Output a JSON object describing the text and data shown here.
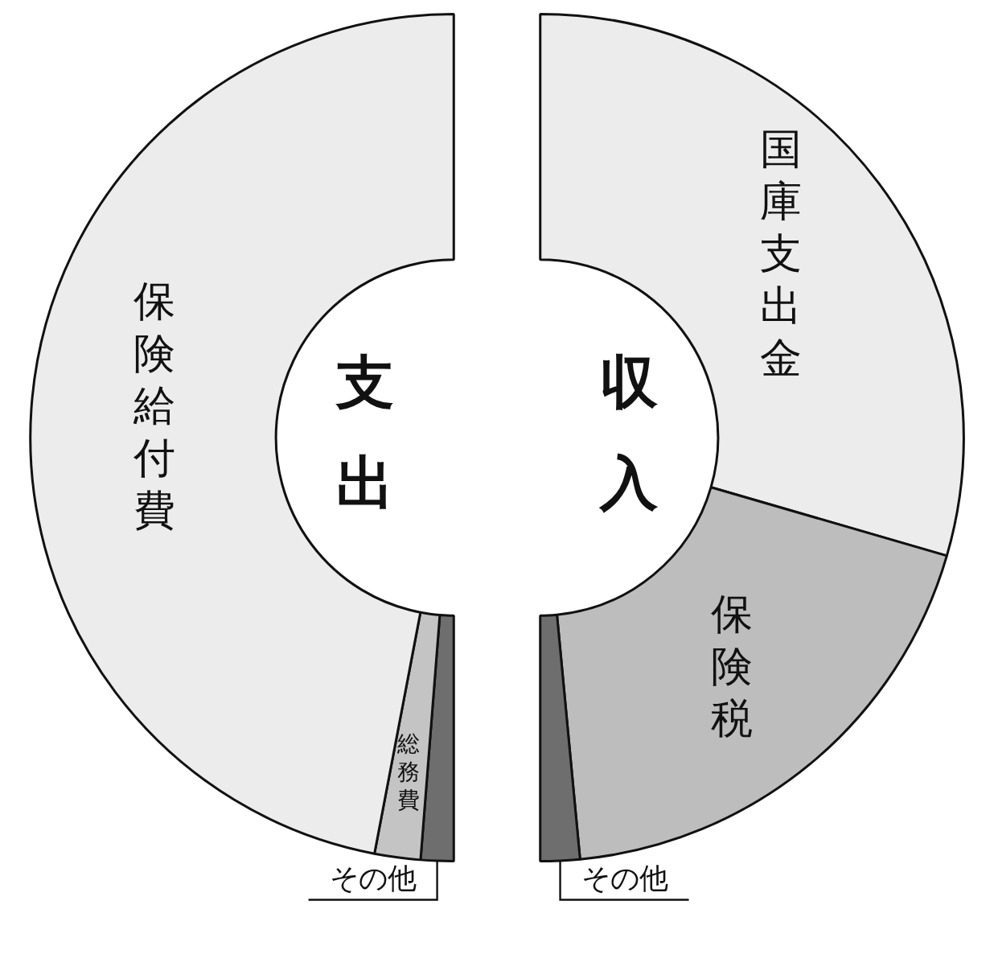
{
  "chart_data": [
    {
      "type": "donut",
      "title": "支出",
      "categories": [
        "その他",
        "総務費",
        "保険給付費"
      ],
      "values": [
        2.5,
        3.5,
        94
      ],
      "colors": [
        "#6e6e6e",
        "#c4c4c4",
        "#ececec"
      ],
      "legend": false
    },
    {
      "type": "donut",
      "title": "収入",
      "categories": [
        "国庫支出金",
        "保険税",
        "その他"
      ],
      "values": [
        59,
        38,
        3
      ],
      "colors": [
        "#ececec",
        "#bdbdbd",
        "#6e6e6e"
      ],
      "legend": false
    }
  ]
}
